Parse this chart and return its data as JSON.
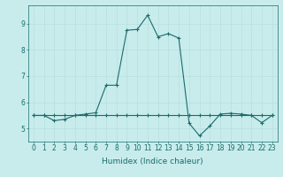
{
  "xlabel": "Humidex (Indice chaleur)",
  "ylabel": "",
  "bg_color": "#c8ecec",
  "grid_color": "#b8dede",
  "line_color": "#1a6b6b",
  "x_data": [
    0,
    1,
    2,
    3,
    4,
    5,
    6,
    7,
    8,
    9,
    10,
    11,
    12,
    13,
    14,
    15,
    16,
    17,
    18,
    19,
    20,
    21,
    22,
    23
  ],
  "line1_y": [
    5.5,
    5.5,
    5.3,
    5.35,
    5.5,
    5.55,
    5.6,
    6.65,
    6.65,
    8.75,
    8.78,
    9.32,
    8.5,
    8.62,
    8.45,
    5.2,
    4.72,
    5.1,
    5.55,
    5.58,
    5.55,
    5.5,
    5.22,
    5.5
  ],
  "line2_y": [
    5.5,
    5.5,
    5.5,
    5.5,
    5.5,
    5.5,
    5.5,
    5.5,
    5.5,
    5.5,
    5.5,
    5.5,
    5.5,
    5.5,
    5.5,
    5.5,
    5.5,
    5.5,
    5.5,
    5.5,
    5.5,
    5.5,
    5.5,
    5.5
  ],
  "ylim": [
    4.5,
    9.7
  ],
  "xlim": [
    -0.5,
    23.5
  ],
  "yticks": [
    5,
    6,
    7,
    8,
    9
  ],
  "xticks": [
    0,
    1,
    2,
    3,
    4,
    5,
    6,
    7,
    8,
    9,
    10,
    11,
    12,
    13,
    14,
    15,
    16,
    17,
    18,
    19,
    20,
    21,
    22,
    23
  ],
  "marker": "+",
  "markersize": 3,
  "linewidth": 0.8,
  "axis_fontsize": 6.5,
  "tick_fontsize": 5.5
}
